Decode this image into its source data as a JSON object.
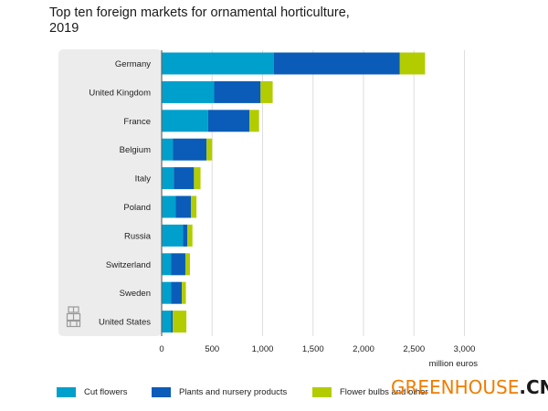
{
  "chart_data": {
    "type": "bar",
    "orientation": "horizontal",
    "stacked": true,
    "title": "Top ten foreign markets for ornamental horticulture,\n2019",
    "categories": [
      "Germany",
      "United Kingdom",
      "France",
      "Belgium",
      "Italy",
      "Poland",
      "Russia",
      "Switzerland",
      "Sweden",
      "United States"
    ],
    "series": [
      {
        "name": "Cut flowers",
        "color": "#00a0cc",
        "values": [
          1110,
          520,
          460,
          110,
          120,
          140,
          210,
          95,
          95,
          95
        ]
      },
      {
        "name": "Plants and nursery products",
        "color": "#0a5cb8",
        "values": [
          1250,
          460,
          410,
          335,
          200,
          150,
          45,
          140,
          105,
          15
        ]
      },
      {
        "name": "Flower bulbs and other",
        "color": "#b2cc00",
        "values": [
          250,
          120,
          95,
          55,
          65,
          55,
          50,
          45,
          40,
          135
        ]
      }
    ],
    "xlim": [
      0,
      3000
    ],
    "xticks": [
      "0",
      "500",
      "1,000",
      "1,500",
      "2,000",
      "2,500",
      "3,000"
    ],
    "xticks_values": [
      0,
      500,
      1000,
      1500,
      2000,
      2500,
      3000
    ],
    "xlabel": "million euros",
    "ylabel": "",
    "grid": true,
    "legend_position": "bottom"
  },
  "watermark": {
    "part1": "GREENHOUSE",
    "part2": ".CN"
  },
  "icons": {
    "source_logo": "building-logo-icon"
  }
}
